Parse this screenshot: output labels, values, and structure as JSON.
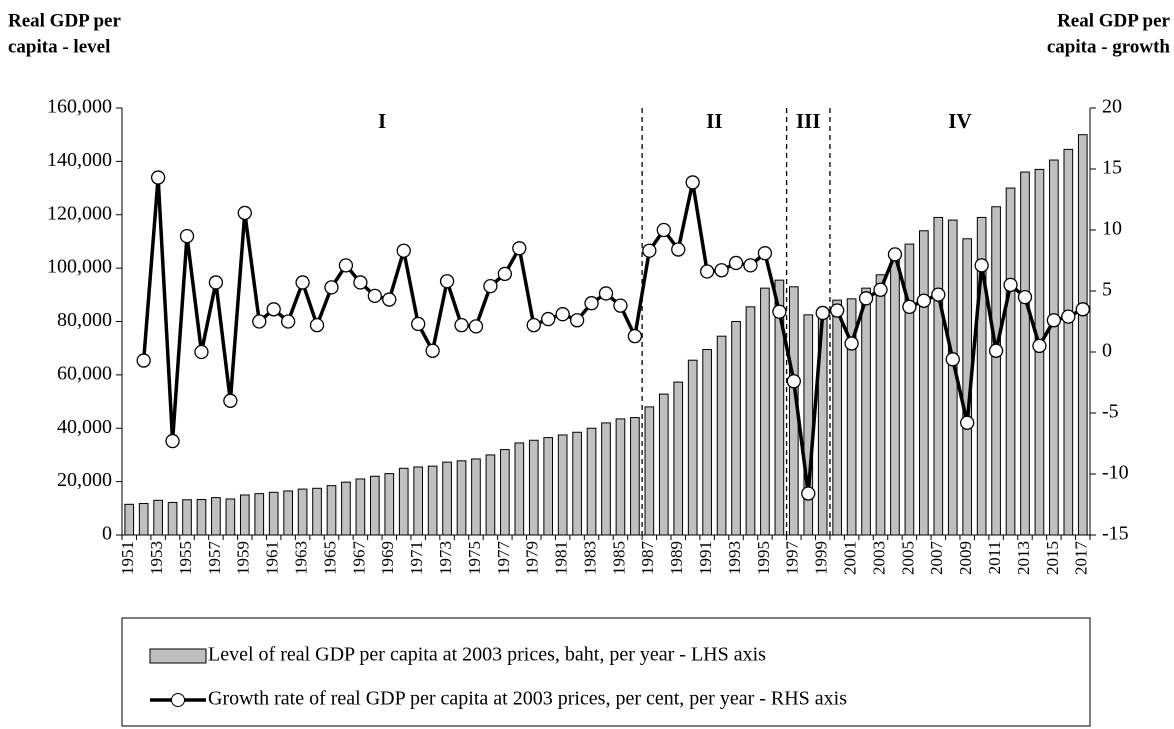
{
  "chart_data": {
    "type": "bar-line",
    "y_label": "Real GDP per capita - level",
    "y2_label": "Real GDP per capita - growth",
    "categories": [
      1951,
      null,
      1953,
      null,
      1955,
      null,
      1957,
      null,
      1959,
      null,
      1961,
      null,
      1963,
      null,
      1965,
      null,
      1967,
      null,
      1969,
      null,
      1971,
      null,
      1973,
      null,
      1975,
      null,
      1977,
      null,
      1979,
      null,
      1981,
      null,
      1983,
      null,
      1985,
      null,
      1987,
      null,
      1989,
      null,
      1991,
      null,
      1993,
      null,
      1995,
      null,
      1997,
      null,
      1999,
      null,
      2001,
      null,
      2003,
      null,
      2005,
      null,
      2007,
      null,
      2009,
      null,
      2011,
      null,
      2013,
      null,
      2015,
      null,
      2017
    ],
    "series": [
      {
        "name": "Level of real GDP per capita at 2003 prices, baht, per year - LHS axis",
        "type": "bar",
        "color": "#c0c0c0",
        "values": [
          11500,
          11800,
          13000,
          12200,
          13200,
          13300,
          14000,
          13500,
          15000,
          15500,
          16000,
          16500,
          17200,
          17500,
          18500,
          19800,
          21000,
          22000,
          23000,
          25000,
          25500,
          25800,
          27300,
          27800,
          28500,
          30000,
          32000,
          34500,
          35500,
          36500,
          37500,
          38500,
          40000,
          42000,
          43500,
          44000,
          48000,
          52800,
          57300,
          65500,
          69500,
          74500,
          80000,
          85500,
          92500,
          95500,
          93000,
          82500,
          85000,
          88000,
          88500,
          92500,
          97500,
          105000,
          109000,
          114000,
          119000,
          118000,
          111000,
          119000,
          123000,
          130000,
          136000,
          137000,
          140500,
          144500,
          150000
        ]
      },
      {
        "name": "Growth rate of real GDP per capita at 2003 prices, per cent, per year - RHS axis",
        "type": "line",
        "axis": "y2",
        "color": "#000000",
        "values": [
          null,
          -0.7,
          14.3,
          -7.3,
          9.5,
          0.0,
          5.7,
          -4.0,
          11.4,
          2.5,
          3.5,
          2.5,
          5.7,
          2.2,
          5.3,
          7.1,
          5.7,
          4.6,
          4.3,
          8.3,
          2.3,
          0.1,
          5.8,
          2.2,
          2.1,
          5.4,
          6.4,
          8.5,
          2.2,
          2.7,
          3.1,
          2.6,
          4.0,
          4.8,
          3.8,
          1.3,
          8.3,
          10.0,
          8.4,
          13.9,
          6.6,
          6.7,
          7.3,
          7.1,
          8.1,
          3.3,
          -2.4,
          -11.6,
          3.2,
          3.4,
          0.7,
          4.4,
          5.1,
          8.0,
          3.7,
          4.2,
          4.7,
          -0.6,
          -5.8,
          7.1,
          0.1,
          5.5,
          4.5,
          0.5,
          2.6,
          2.9,
          3.5
        ]
      }
    ],
    "periods": [
      {
        "label": "I",
        "first_index": 0,
        "last_index": 35
      },
      {
        "label": "II",
        "first_index": 36,
        "last_index": 45
      },
      {
        "label": "III",
        "first_index": 46,
        "last_index": 48
      },
      {
        "label": "IV",
        "first_index": 49,
        "last_index": 66
      }
    ],
    "ylim": [
      0,
      160000
    ],
    "yticks": [
      0,
      {
        "value": 20000,
        "label": "20,000"
      },
      {
        "value": 40000,
        "label": "40,000"
      },
      {
        "value": 60000,
        "label": "60,000"
      },
      {
        "value": 80000,
        "label": "80,000"
      },
      {
        "value": 100000,
        "label": "100,000"
      },
      {
        "value": 120000,
        "label": "120,000"
      },
      {
        "value": 140000,
        "label": "140,000"
      },
      {
        "value": 160000,
        "label": "160,000"
      }
    ],
    "y2lim": [
      -15,
      20
    ],
    "y2ticks": [
      -15,
      -10,
      -5,
      0,
      5,
      10,
      15,
      20
    ],
    "legend": "bottom"
  }
}
